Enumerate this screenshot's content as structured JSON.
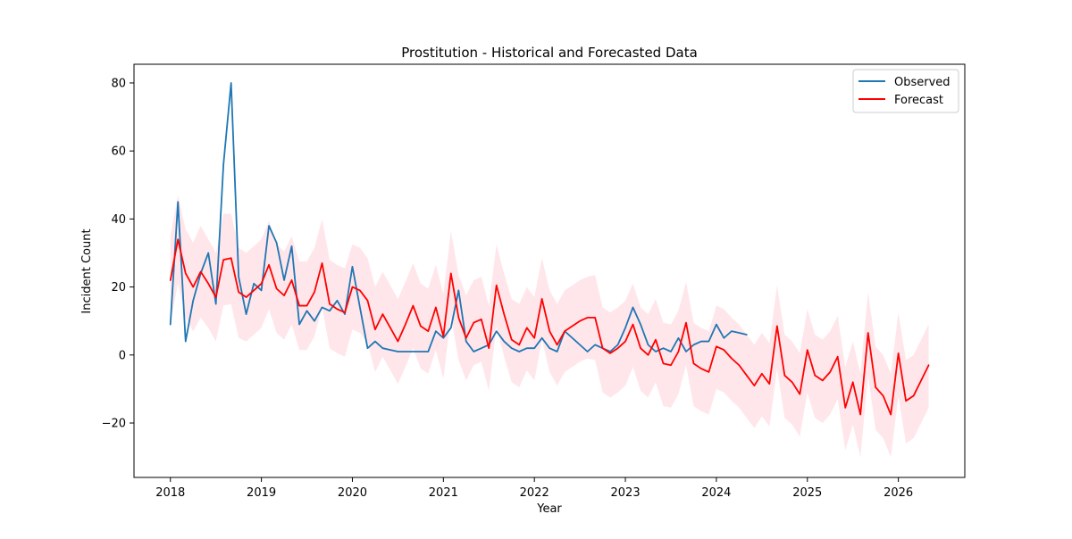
{
  "chart_data": {
    "type": "line",
    "title": "Prostitution - Historical and Forecasted Data",
    "xlabel": "Year",
    "ylabel": "Incident Count",
    "xlim": [
      2017.6,
      2026.73
    ],
    "ylim": [
      -36,
      85.5
    ],
    "x_ticks": [
      2018,
      2019,
      2020,
      2021,
      2022,
      2023,
      2024,
      2025,
      2026
    ],
    "y_ticks": [
      -20,
      0,
      20,
      40,
      60,
      80
    ],
    "grid": false,
    "legend_position": "upper right",
    "series": [
      {
        "name": "Observed",
        "color": "#1f77b4",
        "x": [
          2018.0,
          2018.083,
          2018.167,
          2018.25,
          2018.333,
          2018.417,
          2018.5,
          2018.583,
          2018.667,
          2018.75,
          2018.833,
          2018.917,
          2019.0,
          2019.083,
          2019.167,
          2019.25,
          2019.333,
          2019.417,
          2019.5,
          2019.583,
          2019.667,
          2019.75,
          2019.833,
          2019.917,
          2020.0,
          2020.083,
          2020.167,
          2020.25,
          2020.333,
          2020.417,
          2020.5,
          2020.583,
          2020.667,
          2020.75,
          2020.833,
          2020.917,
          2021.0,
          2021.083,
          2021.167,
          2021.25,
          2021.333,
          2021.417,
          2021.5,
          2021.583,
          2021.667,
          2021.75,
          2021.833,
          2021.917,
          2022.0,
          2022.083,
          2022.167,
          2022.25,
          2022.333,
          2022.417,
          2022.5,
          2022.583,
          2022.667,
          2022.75,
          2022.833,
          2022.917,
          2023.0,
          2023.083,
          2023.167,
          2023.25,
          2023.333,
          2023.417,
          2023.5,
          2023.583,
          2023.667,
          2023.75,
          2023.833,
          2023.917,
          2024.0,
          2024.083,
          2024.167,
          2024.25,
          2024.333
        ],
        "values": [
          9,
          45,
          4,
          16,
          24,
          30,
          15,
          56,
          80,
          23,
          12,
          21,
          19,
          38,
          33,
          22,
          32,
          9,
          13,
          10,
          14,
          13,
          16,
          12,
          26,
          14,
          2,
          4,
          2,
          1.5,
          1,
          1,
          1,
          1,
          1,
          7,
          5,
          8,
          19,
          4,
          1,
          2,
          3,
          7,
          4,
          2,
          1,
          2,
          2,
          5,
          2,
          1,
          7,
          5,
          3,
          1,
          3,
          2,
          1,
          3,
          8,
          14,
          9,
          3,
          1,
          2,
          1,
          5,
          1,
          3,
          4,
          4,
          9,
          5,
          7,
          6.5,
          6
        ]
      },
      {
        "name": "Forecast",
        "color": "#ff0000",
        "x": [
          2018.0,
          2018.083,
          2018.167,
          2018.25,
          2018.333,
          2018.417,
          2018.5,
          2018.583,
          2018.667,
          2018.75,
          2018.833,
          2018.917,
          2019.0,
          2019.083,
          2019.167,
          2019.25,
          2019.333,
          2019.417,
          2019.5,
          2019.583,
          2019.667,
          2019.75,
          2019.833,
          2019.917,
          2020.0,
          2020.083,
          2020.167,
          2020.25,
          2020.333,
          2020.417,
          2020.5,
          2020.583,
          2020.667,
          2020.75,
          2020.833,
          2020.917,
          2021.0,
          2021.083,
          2021.167,
          2021.25,
          2021.333,
          2021.417,
          2021.5,
          2021.583,
          2021.667,
          2021.75,
          2021.833,
          2021.917,
          2022.0,
          2022.083,
          2022.167,
          2022.25,
          2022.333,
          2022.417,
          2022.5,
          2022.583,
          2022.667,
          2022.75,
          2022.833,
          2022.917,
          2023.0,
          2023.083,
          2023.167,
          2023.25,
          2023.333,
          2023.417,
          2023.5,
          2023.583,
          2023.667,
          2023.75,
          2023.833,
          2023.917,
          2024.0,
          2024.083,
          2024.167,
          2024.25,
          2024.333,
          2024.417,
          2024.5,
          2024.583,
          2024.667,
          2024.75,
          2024.833,
          2024.917,
          2025.0,
          2025.083,
          2025.167,
          2025.25,
          2025.333,
          2025.417,
          2025.5,
          2025.583,
          2025.667,
          2025.75,
          2025.833,
          2025.917,
          2026.0,
          2026.083,
          2026.167,
          2026.25,
          2026.333
        ],
        "values": [
          22,
          34,
          24,
          20,
          24.5,
          21,
          17,
          28,
          28.5,
          18.5,
          17,
          19,
          21,
          26.5,
          19.5,
          17.5,
          22,
          14.5,
          14.5,
          18.5,
          27,
          15,
          13.5,
          12.5,
          20,
          19,
          16,
          7.5,
          12,
          8,
          4,
          9,
          14.5,
          8.5,
          7,
          14,
          5.5,
          24,
          11,
          5,
          9.5,
          10.5,
          2,
          20.5,
          12,
          4.5,
          3,
          8,
          5,
          16.5,
          7,
          3,
          7,
          8.5,
          10,
          11,
          11,
          2,
          0.5,
          2,
          4,
          9,
          2,
          0,
          4.5,
          -2.5,
          -3,
          1,
          9.5,
          -2.5,
          -4,
          -5,
          2.5,
          1.5,
          -1,
          -3,
          -6,
          -9,
          -5.5,
          -8.5,
          8.5,
          -6,
          -8,
          -11.5,
          1.5,
          -6,
          -7.5,
          -5,
          -0.5,
          -15.5,
          -8,
          -17.5,
          6.5,
          -9.5,
          -12,
          -17.5,
          0.5,
          -13.5,
          -12,
          -7.5,
          -3
        ]
      }
    ],
    "confidence_band": {
      "color": "#ffc0cb",
      "opacity": 0.4,
      "x": [
        2018.0,
        2018.083,
        2018.167,
        2018.25,
        2018.333,
        2018.417,
        2018.5,
        2018.583,
        2018.667,
        2018.75,
        2018.833,
        2018.917,
        2019.0,
        2019.083,
        2019.167,
        2019.25,
        2019.333,
        2019.417,
        2019.5,
        2019.583,
        2019.667,
        2019.75,
        2019.833,
        2019.917,
        2020.0,
        2020.083,
        2020.167,
        2020.25,
        2020.333,
        2020.417,
        2020.5,
        2020.583,
        2020.667,
        2020.75,
        2020.833,
        2020.917,
        2021.0,
        2021.083,
        2021.167,
        2021.25,
        2021.333,
        2021.417,
        2021.5,
        2021.583,
        2021.667,
        2021.75,
        2021.833,
        2021.917,
        2022.0,
        2022.083,
        2022.167,
        2022.25,
        2022.333,
        2022.417,
        2022.5,
        2022.583,
        2022.667,
        2022.75,
        2022.833,
        2022.917,
        2023.0,
        2023.083,
        2023.167,
        2023.25,
        2023.333,
        2023.417,
        2023.5,
        2023.583,
        2023.667,
        2023.75,
        2023.833,
        2023.917,
        2024.0,
        2024.083,
        2024.167,
        2024.25,
        2024.333,
        2024.417,
        2024.5,
        2024.583,
        2024.667,
        2024.75,
        2024.833,
        2024.917,
        2025.0,
        2025.083,
        2025.167,
        2025.25,
        2025.333,
        2025.417,
        2025.5,
        2025.583,
        2025.667,
        2025.75,
        2025.833,
        2025.917,
        2026.0,
        2026.083,
        2026.167,
        2026.25,
        2026.333
      ],
      "upper": [
        35,
        47,
        37,
        33,
        38,
        34,
        30,
        41.5,
        41.5,
        31.5,
        30,
        32,
        34,
        39.5,
        32.5,
        30.5,
        35,
        27.5,
        27.5,
        31.5,
        40,
        28,
        26.5,
        25.5,
        32.5,
        31.5,
        28.5,
        20,
        24.5,
        20.5,
        16.5,
        21.5,
        27,
        21,
        19.5,
        26.5,
        18,
        36.5,
        23.5,
        17.5,
        22,
        23,
        14.5,
        32.5,
        24,
        16.5,
        15,
        20,
        17,
        28.5,
        19,
        15,
        19,
        20.5,
        22,
        23,
        23.5,
        14,
        12.5,
        14,
        16,
        21,
        14,
        12,
        16.5,
        9.5,
        9,
        13,
        21.5,
        9.5,
        8,
        7,
        14.5,
        13.5,
        11,
        9,
        6,
        3,
        6.5,
        3.5,
        20.5,
        6,
        4,
        0.5,
        13.5,
        6,
        4.5,
        7,
        11.5,
        -3.5,
        4,
        -5.5,
        18.5,
        2.5,
        0,
        -5.5,
        12.5,
        -1.5,
        0,
        4.5,
        9
      ],
      "lower": [
        9,
        21,
        11,
        7,
        11,
        8,
        4,
        14.5,
        15,
        5,
        4,
        6,
        8,
        13.5,
        6.5,
        4.5,
        9,
        1.5,
        1.5,
        5.5,
        14,
        2,
        0.5,
        -0.5,
        7.5,
        6.5,
        3.5,
        -5,
        -0.5,
        -4.5,
        -8.5,
        -3.5,
        2,
        -4,
        -5.5,
        1.5,
        -7,
        11.5,
        -1.5,
        -7.5,
        -3,
        -2,
        -10.5,
        8.5,
        -0.5,
        -8,
        -9.5,
        -4.5,
        -7.5,
        4.5,
        -5,
        -9,
        -5,
        -3.5,
        -2,
        -1,
        -1.5,
        -11,
        -12.5,
        -11,
        -9,
        -3.5,
        -10.5,
        -12.5,
        -8,
        -15,
        -15.5,
        -11.5,
        -3,
        -15,
        -16.5,
        -17.5,
        -10,
        -11,
        -13.5,
        -15.5,
        -18.5,
        -21.5,
        -18,
        -21,
        -4,
        -18.5,
        -20.5,
        -24,
        -11,
        -18.5,
        -20,
        -17.5,
        -13,
        -28,
        -20.5,
        -30,
        -6,
        -22,
        -24.5,
        -30,
        -12,
        -26,
        -24.5,
        -20,
        -15.5
      ]
    },
    "legend": [
      "Observed",
      "Forecast"
    ]
  }
}
